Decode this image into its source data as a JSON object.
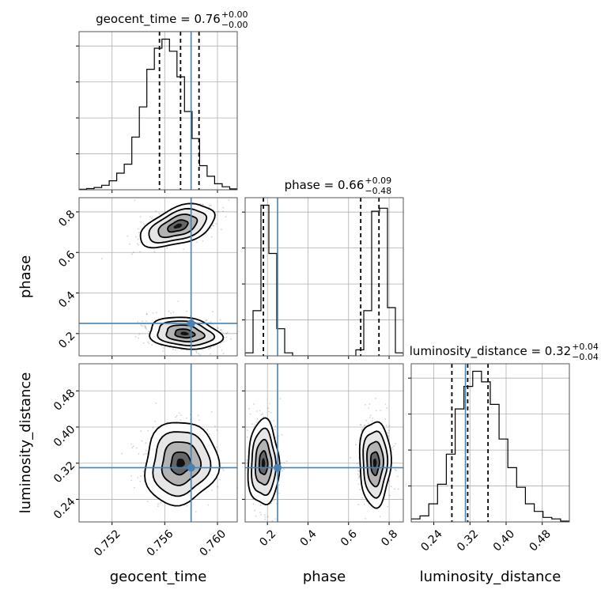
{
  "chart_data": {
    "type": "corner",
    "parameters": [
      {
        "name": "geocent_time",
        "title": "geocent_time = 0.76",
        "median_text": "0.76",
        "plus_err": "+0.00",
        "minus_err": "−0.00",
        "range": [
          0.7495,
          0.7615
        ],
        "ticks": [
          0.752,
          0.756,
          0.76
        ],
        "tick_labels": [
          "0.752",
          "0.756",
          "0.760"
        ],
        "truth": 0.758,
        "quantiles": [
          0.7556,
          0.7572,
          0.7586
        ],
        "hist": [
          0.3,
          0.8,
          1.5,
          3,
          6,
          11,
          17,
          35,
          55,
          80,
          94,
          100,
          92,
          75,
          52,
          34,
          16,
          9,
          4,
          2,
          0.6
        ]
      },
      {
        "name": "phase",
        "title": "phase = 0.66",
        "median_text": "0.66",
        "plus_err": "+0.09",
        "minus_err": "−0.48",
        "range": [
          0.09,
          0.87
        ],
        "ticks": [
          0.2,
          0.4,
          0.6,
          0.8
        ],
        "tick_labels": [
          "0.2",
          "0.4",
          "0.6",
          "0.8"
        ],
        "truth": 0.25,
        "quantiles": [
          0.18,
          0.66,
          0.75
        ],
        "hist": [
          2,
          30,
          100,
          68,
          18,
          2,
          0,
          0,
          0,
          0,
          0,
          0,
          0,
          0,
          4,
          30,
          96,
          98,
          32,
          2
        ]
      },
      {
        "name": "luminosity_distance",
        "title": "luminosity_distance = 0.32",
        "median_text": "0.32",
        "plus_err": "+0.04",
        "minus_err": "−0.04",
        "range": [
          0.19,
          0.54
        ],
        "ticks": [
          0.24,
          0.32,
          0.4,
          0.48
        ],
        "tick_labels": [
          "0.24",
          "0.32",
          "0.40",
          "0.48"
        ],
        "truth": 0.31,
        "quantiles": [
          0.28,
          0.315,
          0.36
        ],
        "hist": [
          2,
          4,
          12,
          25,
          45,
          75,
          90,
          100,
          93,
          78,
          55,
          36,
          23,
          12,
          7,
          3,
          2,
          0.5
        ]
      }
    ],
    "blobs": {
      "1_0": [
        {
          "x": 0.757,
          "y": 0.73,
          "sx": 0.00135,
          "sy": 0.04,
          "tilt": -0.35
        },
        {
          "x": 0.7575,
          "y": 0.2,
          "sx": 0.00125,
          "sy": 0.035,
          "tilt": 0.1
        }
      ],
      "2_0": [
        {
          "x": 0.7572,
          "y": 0.32,
          "sx": 0.00125,
          "sy": 0.042,
          "tilt": 0.25
        }
      ],
      "2_1": [
        {
          "x": 0.18,
          "y": 0.32,
          "sx": 0.035,
          "sy": 0.043,
          "tilt": 0.0
        },
        {
          "x": 0.73,
          "y": 0.32,
          "sx": 0.035,
          "sy": 0.043,
          "tilt": 0.0
        }
      ]
    },
    "truth_color": "#4682b4",
    "grid": true
  }
}
